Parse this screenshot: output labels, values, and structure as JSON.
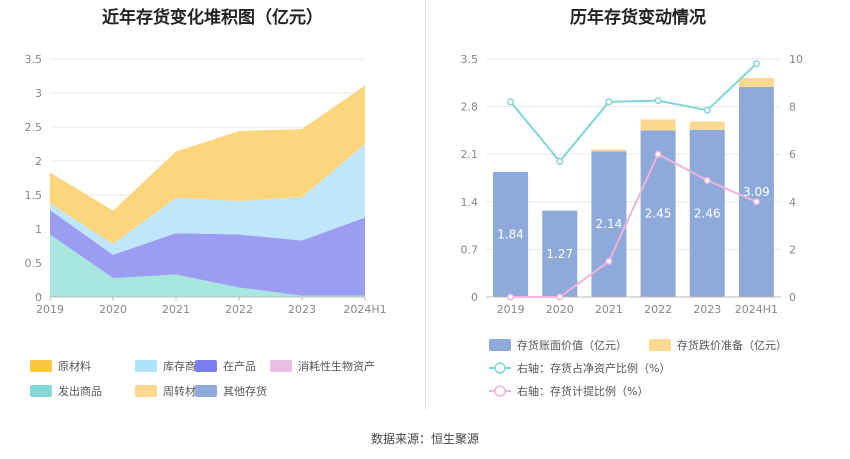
{
  "chart_data": [
    {
      "type": "area",
      "stacked": true,
      "title": "近年存货变化堆积图（亿元）",
      "categories": [
        "2019",
        "2020",
        "2021",
        "2022",
        "2023",
        "2024H1"
      ],
      "ylim": [
        0,
        3.5
      ],
      "yticks": [
        "0",
        "0.5",
        "1",
        "1.5",
        "2",
        "2.5",
        "3",
        "3.5"
      ],
      "grid": true,
      "legend_position": "bottom",
      "series": [
        {
          "name": "发出商品",
          "color": "#a8e6e0",
          "values": [
            0.92,
            0.28,
            0.33,
            0.14,
            0.02,
            0.02
          ]
        },
        {
          "name": "在产品",
          "color": "#9b9cf2",
          "values": [
            0.36,
            0.34,
            0.61,
            0.78,
            0.81,
            1.15
          ]
        },
        {
          "name": "库存商品",
          "color": "#bfe6fb",
          "values": [
            0.1,
            0.16,
            0.52,
            0.49,
            0.64,
            1.08
          ]
        },
        {
          "name": "原材料",
          "color": "#fdd57c",
          "values": [
            0.45,
            0.49,
            0.68,
            1.03,
            1.0,
            0.86
          ]
        },
        {
          "name": "消耗性生物资产",
          "color": "#e8bfe0",
          "values": [
            0,
            0,
            0,
            0,
            0,
            0
          ]
        },
        {
          "name": "周转材料",
          "color": "#fcd98f",
          "values": [
            0,
            0,
            0,
            0,
            0,
            0
          ]
        },
        {
          "name": "其他存货",
          "color": "#8eaadb",
          "values": [
            0,
            0,
            0,
            0,
            0,
            0
          ]
        }
      ],
      "legend": [
        {
          "name": "原材料",
          "color": "#fbc73e"
        },
        {
          "name": "库存商品",
          "color": "#aee3fa"
        },
        {
          "name": "在产品",
          "color": "#7b7ef0"
        },
        {
          "name": "消耗性生物资产",
          "color": "#e8bfe0"
        },
        {
          "name": "发出商品",
          "color": "#86d8d4"
        },
        {
          "name": "周转材料",
          "color": "#fcd98f"
        },
        {
          "name": "其他存货",
          "color": "#8eaadb"
        }
      ]
    },
    {
      "type": "bar",
      "title": "历年存货变动情况",
      "categories": [
        "2019",
        "2020",
        "2021",
        "2022",
        "2023",
        "2024H1"
      ],
      "ylim": [
        0,
        3.5
      ],
      "yticks": [
        "0",
        "0.7",
        "1.4",
        "2.1",
        "2.8",
        "3.5"
      ],
      "y2lim": [
        0,
        10
      ],
      "y2ticks": [
        "0",
        "2",
        "4",
        "6",
        "8",
        "10"
      ],
      "grid": true,
      "legend_position": "bottom",
      "series": [
        {
          "name": "存货账面价值（亿元）",
          "color": "#8eaadb",
          "axis": "left",
          "kind": "bar",
          "values": [
            1.84,
            1.27,
            2.14,
            2.45,
            2.46,
            3.09
          ],
          "labels": [
            "1.84",
            "1.27",
            "2.14",
            "2.45",
            "2.46",
            "3.09"
          ]
        },
        {
          "name": "存货跌价准备（亿元）",
          "color": "#fcd98f",
          "axis": "left",
          "kind": "bar_stack",
          "values": [
            0,
            0,
            0.03,
            0.16,
            0.12,
            0.13
          ]
        },
        {
          "name": "右轴：存货占净资产比例（%）",
          "color": "#7fd6d6",
          "axis": "right",
          "kind": "line",
          "values": [
            8.2,
            5.7,
            8.2,
            8.25,
            7.85,
            9.8
          ]
        },
        {
          "name": "右轴：存货计提比例（%）",
          "color": "#efb3dc",
          "axis": "right",
          "kind": "line",
          "values": [
            0,
            0,
            1.5,
            6.0,
            4.9,
            4.0
          ]
        }
      ]
    }
  ],
  "footer": {
    "source": "数据来源：恒生聚源"
  }
}
